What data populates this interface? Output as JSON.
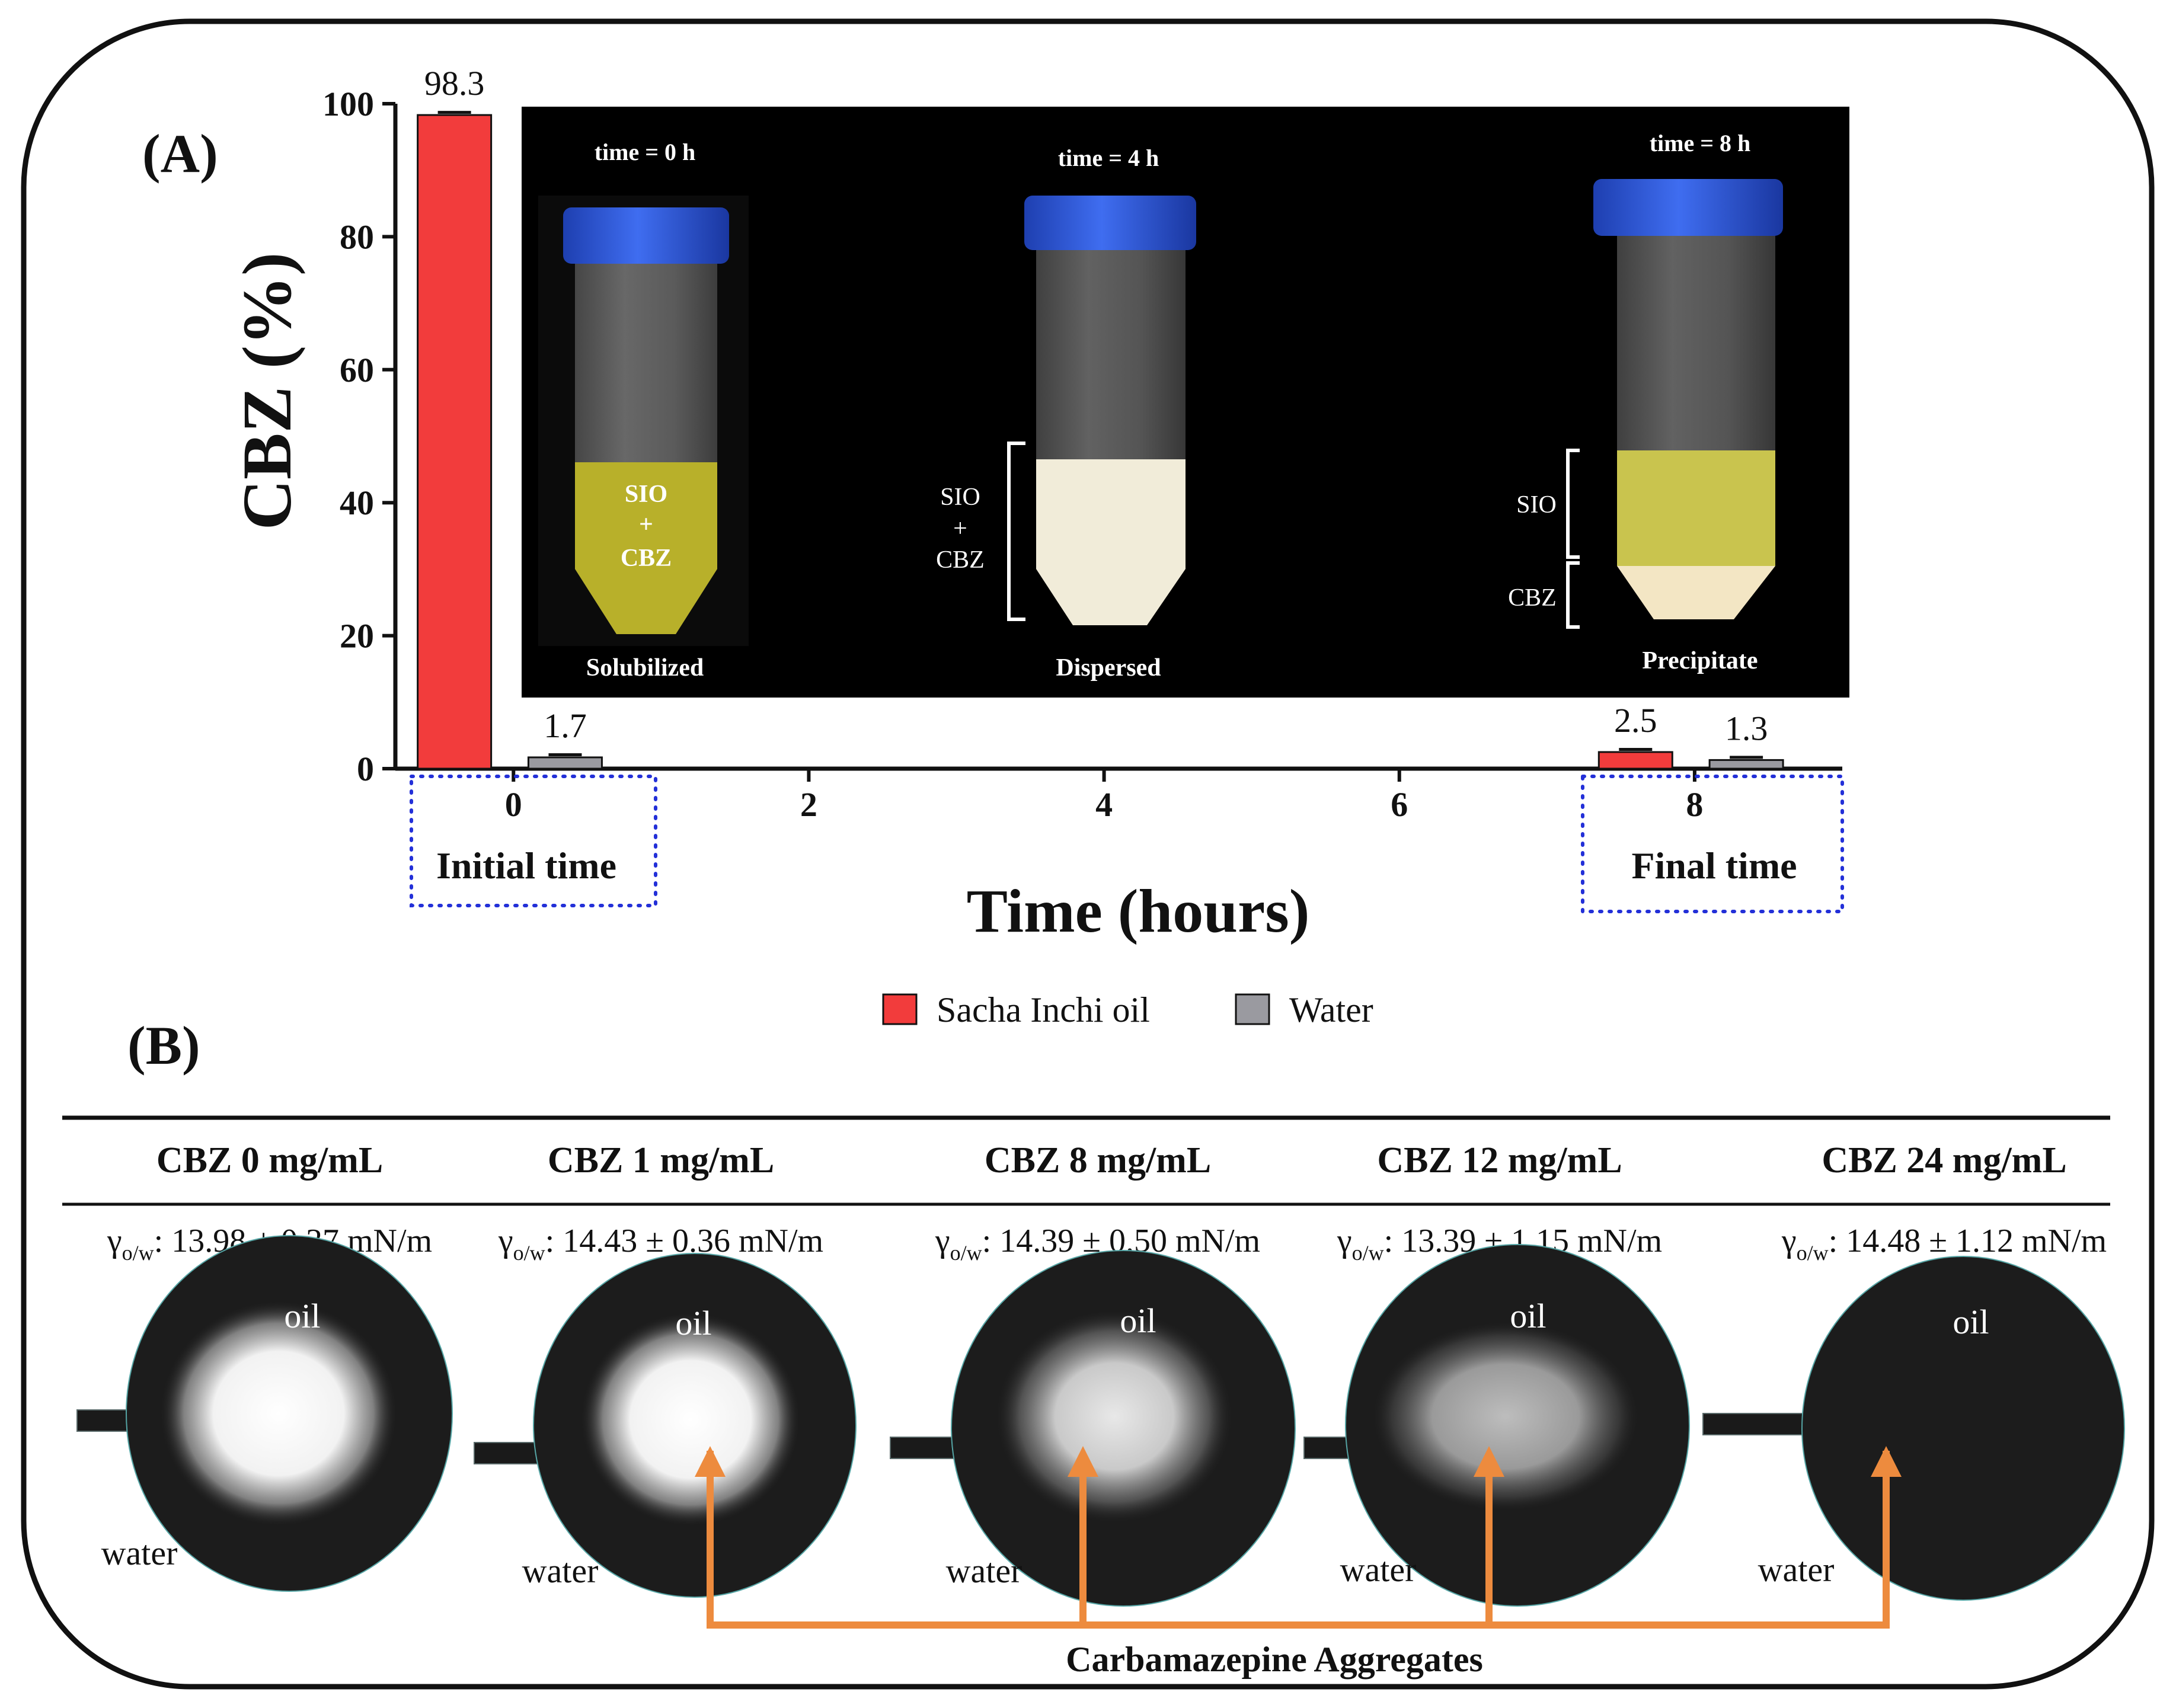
{
  "panel_labels": {
    "a": "(A)",
    "b": "(B)"
  },
  "chart_data": {
    "type": "bar",
    "ylabel": "CBZ (%)",
    "xlabel": "Time (hours)",
    "ylim": [
      0,
      100
    ],
    "xlim": [
      -0.8,
      9
    ],
    "y_ticks": [
      0,
      20,
      40,
      60,
      80,
      100
    ],
    "x_ticks": [
      0,
      2,
      4,
      6,
      8
    ],
    "series": [
      {
        "name": "Sacha Inchi oil",
        "color": "#f23c3c",
        "points": [
          {
            "x": -0.4,
            "value": 98.3,
            "label": "98.3"
          },
          {
            "x": 7.6,
            "value": 2.5,
            "label": "2.5"
          }
        ]
      },
      {
        "name": "Water",
        "color": "#9a9aa0",
        "points": [
          {
            "x": 0.35,
            "value": 1.7,
            "label": "1.7"
          },
          {
            "x": 8.35,
            "value": 1.3,
            "label": "1.3"
          }
        ]
      }
    ],
    "time_boxes": {
      "initial": "Initial time",
      "final": "Final time"
    },
    "legend_position": "bottom-center"
  },
  "inset": {
    "tubes": [
      {
        "time": "time = 0 h",
        "state": "Solubilized",
        "content": [
          "SIO",
          "+",
          "CBZ"
        ]
      },
      {
        "time": "time = 4 h",
        "state": "Dispersed",
        "bracket": [
          "SIO",
          "+",
          "CBZ"
        ]
      },
      {
        "time": "time = 8 h",
        "state": "Precipitate",
        "bracket_top": "SIO",
        "bracket_bottom": "CBZ"
      }
    ]
  },
  "panel_b": {
    "columns": [
      {
        "header": "CBZ 0 mg/mL",
        "gamma_value": ": 13.98 ± 0.37 mN/m",
        "oil": "oil",
        "water": "water"
      },
      {
        "header": "CBZ 1 mg/mL",
        "gamma_value": ": 14.43 ± 0.36 mN/m",
        "oil": "oil",
        "water": "water"
      },
      {
        "header": "CBZ 8 mg/mL",
        "gamma_value": ": 14.39 ± 0.50 mN/m",
        "oil": "oil",
        "water": "water"
      },
      {
        "header": "CBZ 12 mg/mL",
        "gamma_value": ": 13.39 ± 1.15 mN/m",
        "oil": "oil",
        "water": "water"
      },
      {
        "header": "CBZ 24 mg/mL",
        "gamma_value": ": 14.48 ± 1.12 mN/m",
        "oil": "oil",
        "water": "water"
      }
    ],
    "gamma_symbol": "γ",
    "gamma_sub": "o/w",
    "aggregates_label": "Carbamazepine Aggregates",
    "arrow_color": "#ed8b3e"
  }
}
